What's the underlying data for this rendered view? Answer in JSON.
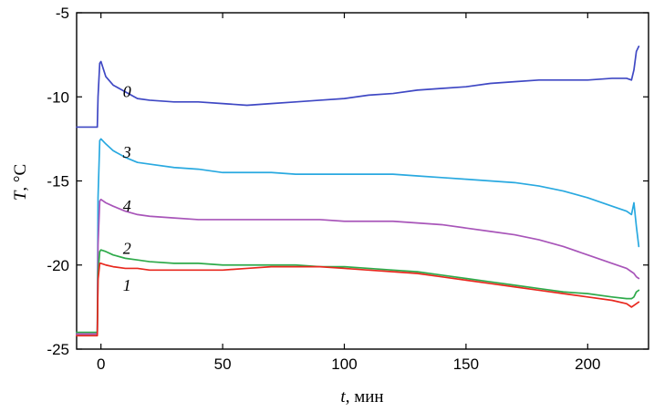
{
  "chart_data": {
    "type": "line",
    "xlabel": {
      "var": "t",
      "rest": ", мин"
    },
    "ylabel": {
      "var": "T",
      "rest": ", ",
      "unit": "°C"
    },
    "xlim": [
      -10,
      225
    ],
    "ylim": [
      -25,
      -5
    ],
    "xticks": [
      0,
      50,
      100,
      150,
      200
    ],
    "yticks": [
      -25,
      -20,
      -15,
      -10,
      -5
    ],
    "grid": false,
    "series": [
      {
        "label": "0",
        "color": "#3f48c4",
        "label_pos": [
          9,
          -9.7
        ],
        "x": [
          -10,
          -1.5,
          -1.2,
          -0.5,
          0,
          2,
          5,
          10,
          15,
          20,
          30,
          40,
          50,
          60,
          70,
          80,
          90,
          100,
          110,
          120,
          130,
          140,
          150,
          160,
          170,
          180,
          190,
          200,
          210,
          216,
          218,
          219,
          220,
          221
        ],
        "y": [
          -11.8,
          -11.8,
          -10.0,
          -8.0,
          -7.9,
          -8.8,
          -9.3,
          -9.7,
          -10.1,
          -10.2,
          -10.3,
          -10.3,
          -10.4,
          -10.5,
          -10.4,
          -10.3,
          -10.2,
          -10.1,
          -9.9,
          -9.8,
          -9.6,
          -9.5,
          -9.4,
          -9.2,
          -9.1,
          -9.0,
          -9.0,
          -9.0,
          -8.9,
          -8.9,
          -9.0,
          -8.4,
          -7.3,
          -7.0
        ]
      },
      {
        "label": "3",
        "color": "#29a9e0",
        "label_pos": [
          9,
          -13.3
        ],
        "x": [
          -10,
          -1.5,
          -1.2,
          -0.5,
          0,
          2,
          5,
          10,
          15,
          20,
          30,
          40,
          50,
          60,
          70,
          80,
          90,
          100,
          110,
          120,
          130,
          140,
          150,
          160,
          170,
          180,
          190,
          200,
          210,
          216,
          218,
          219,
          220,
          221
        ],
        "y": [
          -24.1,
          -24.1,
          -16.0,
          -12.6,
          -12.5,
          -12.8,
          -13.2,
          -13.6,
          -13.9,
          -14.0,
          -14.2,
          -14.3,
          -14.5,
          -14.5,
          -14.5,
          -14.6,
          -14.6,
          -14.6,
          -14.6,
          -14.6,
          -14.7,
          -14.8,
          -14.9,
          -15.0,
          -15.1,
          -15.3,
          -15.6,
          -16.0,
          -16.5,
          -16.8,
          -17.0,
          -16.3,
          -17.7,
          -18.9
        ]
      },
      {
        "label": "4",
        "color": "#a855b9",
        "label_pos": [
          9,
          -16.5
        ],
        "x": [
          -10,
          -1.5,
          -1.2,
          -0.5,
          0,
          2,
          5,
          10,
          15,
          20,
          30,
          40,
          50,
          60,
          70,
          80,
          90,
          100,
          110,
          120,
          130,
          140,
          150,
          160,
          170,
          180,
          190,
          200,
          210,
          216,
          218,
          219,
          220,
          221
        ],
        "y": [
          -24.1,
          -24.1,
          -18.8,
          -16.2,
          -16.1,
          -16.3,
          -16.5,
          -16.8,
          -17.0,
          -17.1,
          -17.2,
          -17.3,
          -17.3,
          -17.3,
          -17.3,
          -17.3,
          -17.3,
          -17.4,
          -17.4,
          -17.4,
          -17.5,
          -17.6,
          -17.8,
          -18.0,
          -18.2,
          -18.5,
          -18.9,
          -19.4,
          -19.9,
          -20.2,
          -20.4,
          -20.5,
          -20.7,
          -20.8
        ]
      },
      {
        "label": "2",
        "color": "#2eaa4a",
        "label_pos": [
          9,
          -19.0
        ],
        "x": [
          -10,
          -1.5,
          -1.2,
          -0.5,
          0,
          2,
          5,
          10,
          15,
          20,
          30,
          40,
          50,
          60,
          70,
          80,
          90,
          100,
          110,
          120,
          130,
          140,
          150,
          160,
          170,
          180,
          190,
          200,
          210,
          216,
          218,
          219,
          220,
          221
        ],
        "y": [
          -24.0,
          -24.0,
          -20.5,
          -19.2,
          -19.1,
          -19.2,
          -19.4,
          -19.6,
          -19.7,
          -19.8,
          -19.9,
          -19.9,
          -20.0,
          -20.0,
          -20.0,
          -20.0,
          -20.1,
          -20.1,
          -20.2,
          -20.3,
          -20.4,
          -20.6,
          -20.8,
          -21.0,
          -21.2,
          -21.4,
          -21.6,
          -21.7,
          -21.9,
          -22.0,
          -22.0,
          -21.9,
          -21.6,
          -21.5
        ]
      },
      {
        "label": "1",
        "color": "#e8281e",
        "label_pos": [
          9,
          -21.2
        ],
        "x": [
          -10,
          -1.5,
          -1.2,
          -0.5,
          0,
          2,
          5,
          10,
          15,
          20,
          30,
          40,
          50,
          60,
          70,
          80,
          90,
          100,
          110,
          120,
          130,
          140,
          150,
          160,
          170,
          180,
          190,
          200,
          210,
          216,
          218,
          219,
          220,
          221
        ],
        "y": [
          -24.2,
          -24.2,
          -20.9,
          -19.9,
          -19.9,
          -20.0,
          -20.1,
          -20.2,
          -20.2,
          -20.3,
          -20.3,
          -20.3,
          -20.3,
          -20.2,
          -20.1,
          -20.1,
          -20.1,
          -20.2,
          -20.3,
          -20.4,
          -20.5,
          -20.7,
          -20.9,
          -21.1,
          -21.3,
          -21.5,
          -21.7,
          -21.9,
          -22.1,
          -22.3,
          -22.5,
          -22.4,
          -22.3,
          -22.2
        ]
      }
    ]
  }
}
